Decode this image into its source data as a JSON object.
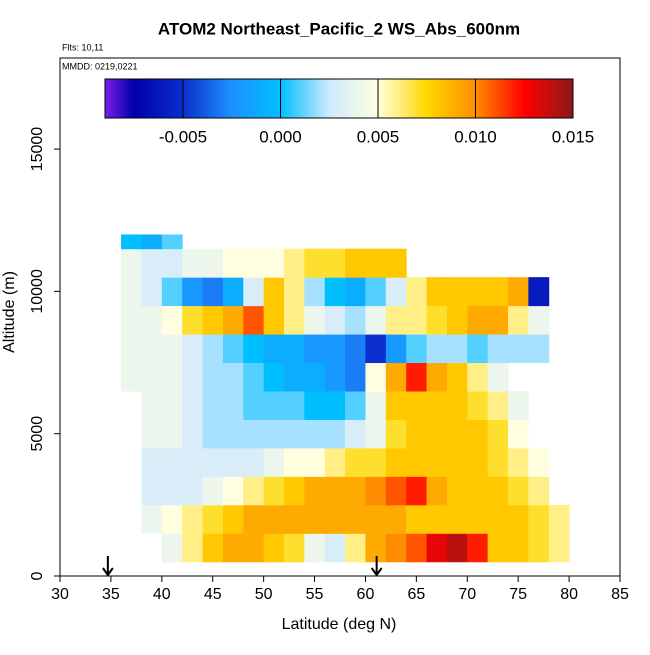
{
  "chart_data": {
    "type": "heatmap",
    "title": "ATOM2 Northeast_Pacific_2 WS_Abs_600nm",
    "annotations": [
      "Flts: 10,11",
      "MMDD: 0219,0221"
    ],
    "xlabel": "Latitude (deg N)",
    "ylabel": "Altitude (m)",
    "xlim": [
      30,
      85
    ],
    "ylim": [
      0,
      18200
    ],
    "xticks": [
      30,
      35,
      40,
      45,
      50,
      55,
      60,
      65,
      70,
      75,
      80,
      85
    ],
    "yticks": [
      0,
      5000,
      10000,
      15000
    ],
    "arrows_x": [
      34.7,
      61.1
    ],
    "x_edges": [
      36,
      38,
      40,
      42,
      44,
      46,
      48,
      50,
      52,
      54,
      56,
      58,
      60,
      62,
      64,
      66,
      68,
      70,
      72,
      74,
      76,
      78,
      80
    ],
    "y_edges": [
      500,
      1500,
      2500,
      3500,
      4500,
      5500,
      6500,
      7500,
      8500,
      9500,
      10500,
      11500,
      12000
    ],
    "z": [
      [
        null,
        null,
        0.004,
        0.006,
        0.008,
        0.009,
        0.009,
        0.008,
        0.007,
        0.004,
        0.003,
        0.006,
        0.009,
        0.01,
        0.011,
        0.013,
        0.014,
        0.012,
        0.008,
        0.008,
        0.007,
        0.006
      ],
      [
        null,
        0.004,
        0.005,
        0.006,
        0.007,
        0.008,
        0.009,
        0.009,
        0.009,
        0.009,
        0.009,
        0.009,
        0.009,
        0.009,
        0.008,
        0.008,
        0.008,
        0.008,
        0.008,
        0.008,
        0.007,
        0.006
      ],
      [
        null,
        0.003,
        0.003,
        0.003,
        0.004,
        0.005,
        0.006,
        0.007,
        0.008,
        0.009,
        0.009,
        0.009,
        0.01,
        0.011,
        0.012,
        0.009,
        0.008,
        0.008,
        0.008,
        0.007,
        0.006,
        null
      ],
      [
        null,
        0.003,
        0.003,
        0.003,
        0.003,
        0.003,
        0.003,
        0.004,
        0.005,
        0.005,
        0.006,
        0.007,
        0.007,
        0.008,
        0.008,
        0.008,
        0.008,
        0.008,
        0.007,
        0.006,
        0.005,
        null
      ],
      [
        null,
        0.004,
        0.004,
        0.003,
        0.002,
        0.002,
        0.002,
        0.002,
        0.002,
        0.002,
        0.002,
        0.003,
        0.004,
        0.007,
        0.008,
        0.008,
        0.008,
        0.008,
        0.007,
        0.005,
        null,
        null
      ],
      [
        null,
        0.004,
        0.004,
        0.003,
        0.002,
        0.002,
        0.001,
        0.001,
        0.001,
        0,
        0,
        0.001,
        0.004,
        0.008,
        0.008,
        0.008,
        0.008,
        0.007,
        0.006,
        0.004,
        null,
        null
      ],
      [
        0.004,
        0.004,
        0.004,
        0.003,
        0.002,
        0.002,
        0.001,
        0,
        -0.001,
        -0.001,
        -0.002,
        -0.003,
        0.005,
        0.009,
        0.012,
        0.009,
        0.008,
        0.006,
        0.004,
        null,
        null,
        null
      ],
      [
        0.004,
        0.004,
        0.004,
        0.003,
        0.002,
        0.001,
        0,
        -0.001,
        -0.001,
        -0.002,
        -0.002,
        -0.003,
        -0.005,
        -0.002,
        0.001,
        0.002,
        0.002,
        0.001,
        0.002,
        0.002,
        0.002,
        null
      ],
      [
        0.004,
        0.004,
        0.005,
        0.007,
        0.008,
        0.009,
        0.011,
        0.008,
        0.006,
        0.004,
        0.003,
        0.002,
        0.004,
        0.006,
        0.006,
        0.007,
        0.008,
        0.009,
        0.009,
        0.006,
        0.004,
        null
      ],
      [
        0.004,
        0.003,
        0.001,
        -0.002,
        -0.003,
        -0.001,
        0.003,
        0.008,
        0.006,
        0.002,
        0,
        -0.001,
        0.001,
        0.003,
        0.006,
        0.008,
        0.008,
        0.008,
        0.008,
        0.009,
        -0.006,
        null
      ],
      [
        0.004,
        0.003,
        0.003,
        0.004,
        0.004,
        0.005,
        0.005,
        0.005,
        0.006,
        0.007,
        0.007,
        0.008,
        0.008,
        0.008,
        null,
        null,
        null,
        null,
        null,
        null,
        null,
        null
      ],
      [
        0,
        -0.001,
        0.001,
        null,
        null,
        null,
        null,
        null,
        null,
        null,
        null,
        null,
        null,
        null,
        null,
        null,
        null,
        null,
        null,
        null,
        null,
        null
      ]
    ],
    "clim": [
      -0.009,
      0.015
    ],
    "cticks": [
      -0.005,
      {
        "value": 0,
        "label": "0.000"
      },
      0.005,
      {
        "value": 0.01,
        "label": "0.010"
      },
      0.015
    ],
    "colorscale": [
      [
        -0.009,
        "#7a1fe6"
      ],
      [
        -0.0075,
        "#0000a8"
      ],
      [
        -0.005,
        "#0a2fcc"
      ],
      [
        -0.0025,
        "#1e90ff"
      ],
      [
        0,
        "#00bfff"
      ],
      [
        0.0025,
        "#cfe9ff"
      ],
      [
        0.005,
        "#ffffe0"
      ],
      [
        0.0075,
        "#ffd700"
      ],
      [
        0.01,
        "#ff8c00"
      ],
      [
        0.0125,
        "#ff0000"
      ],
      [
        0.015,
        "#8b1a1a"
      ]
    ]
  }
}
